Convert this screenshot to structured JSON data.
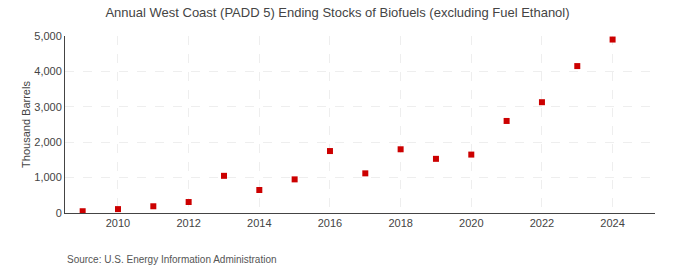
{
  "chart_data": {
    "type": "scatter",
    "title": "Annual West Coast (PADD 5) Ending Stocks of Biofuels (excluding Fuel Ethanol)",
    "ylabel": "Thousand Barrels",
    "annotations": [
      "Source: U.S. Energy Information Administration"
    ],
    "x": [
      2009,
      2010,
      2011,
      2012,
      2013,
      2014,
      2015,
      2016,
      2017,
      2018,
      2019,
      2020,
      2021,
      2022,
      2023,
      2024
    ],
    "values": [
      50,
      110,
      190,
      310,
      1050,
      650,
      950,
      1750,
      1120,
      1800,
      1530,
      1650,
      2600,
      3130,
      4150,
      4900
    ],
    "color": "#cc0000",
    "marker": "square",
    "xlim": [
      2008.5,
      2025.2
    ],
    "xticks": [
      2010,
      2012,
      2014,
      2016,
      2018,
      2020,
      2022,
      2024
    ],
    "ylim": [
      0,
      5000
    ],
    "yticks": [
      0,
      {
        "value": 1000,
        "label": "1,000"
      },
      {
        "value": 2000,
        "label": "2,000"
      },
      {
        "value": 3000,
        "label": "3,000"
      },
      {
        "value": 4000,
        "label": "4,000"
      },
      {
        "value": 5000,
        "label": "5,000"
      }
    ],
    "grid": true
  }
}
